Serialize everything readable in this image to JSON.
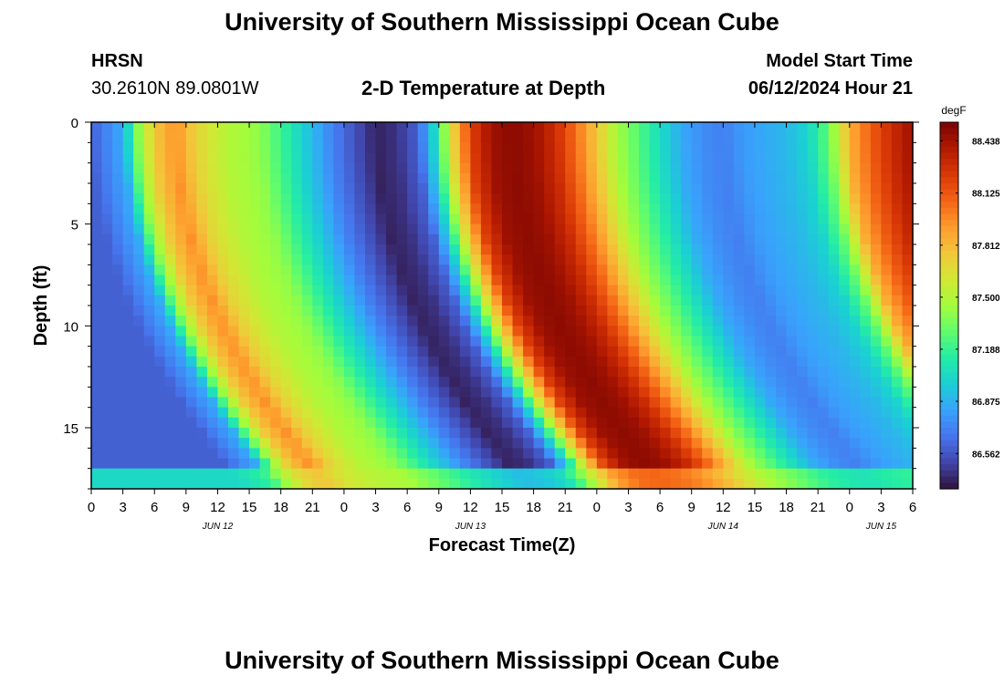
{
  "page": {
    "title": "University of Southern Mississippi Ocean Cube",
    "station": "HRSN",
    "coords": "30.2610N  89.0801W",
    "subtitle": "2-D Temperature at Depth",
    "model_label": "Model Start Time",
    "model_time": "06/12/2024 Hour 21",
    "footer_title": "University of Southern Mississippi Ocean Cube"
  },
  "chart_data": {
    "type": "heatmap",
    "title": "2-D Temperature at Depth",
    "xlabel": "Forecast Time(Z)",
    "ylabel": "Depth (ft)",
    "x_range_hours": [
      0,
      78
    ],
    "y_range_ft": [
      0,
      18
    ],
    "x_tick_step_hours": 3,
    "x_tick_labels": [
      "0",
      "3",
      "6",
      "9",
      "12",
      "15",
      "18",
      "21",
      "0",
      "3",
      "6",
      "9",
      "12",
      "15",
      "18",
      "21",
      "0",
      "3",
      "6",
      "9",
      "12",
      "15",
      "18",
      "21",
      "0",
      "3",
      "6"
    ],
    "date_labels": [
      {
        "hour": 12,
        "label": "JUN 12"
      },
      {
        "hour": 36,
        "label": "JUN 13"
      },
      {
        "hour": 60,
        "label": "JUN 14"
      },
      {
        "hour": 75,
        "label": "JUN 15"
      }
    ],
    "y_ticks": [
      0,
      5,
      10,
      15
    ],
    "colorbar": {
      "unit": "degF",
      "min": 86.35,
      "max": 88.55,
      "labels": [
        "88.438",
        "88.125",
        "87.812",
        "87.500",
        "87.188",
        "86.875",
        "86.562"
      ],
      "label_values": [
        88.438,
        88.125,
        87.812,
        87.5,
        87.188,
        86.875,
        86.562
      ],
      "colors": [
        "#30123b",
        "#4145ab",
        "#4675ed",
        "#39a2fc",
        "#1bcfd4",
        "#24eca6",
        "#61fc6c",
        "#a4fc3b",
        "#d1e834",
        "#f3c63a",
        "#fe9b2d",
        "#f36315",
        "#d93806",
        "#b11901",
        "#7a0403"
      ]
    },
    "description": "Temperature field (degF) vs forecast time and depth",
    "time_hours": [
      0,
      3,
      4.5,
      6,
      8,
      10,
      13,
      16,
      18,
      21,
      23,
      25,
      27,
      29,
      31,
      32.5,
      34,
      36,
      38,
      40,
      42,
      44,
      46,
      48,
      50,
      52,
      54,
      56,
      58,
      60,
      62,
      64,
      66,
      68,
      70,
      72,
      74,
      76,
      78
    ],
    "surface_degF": [
      86.6,
      86.85,
      87.4,
      87.75,
      87.95,
      87.7,
      87.5,
      87.4,
      87.2,
      86.9,
      86.7,
      86.55,
      86.4,
      86.45,
      86.6,
      87.0,
      87.6,
      88.2,
      88.45,
      88.5,
      88.45,
      88.3,
      88.05,
      87.75,
      87.45,
      87.25,
      87.05,
      86.85,
      86.75,
      86.7,
      86.8,
      86.85,
      86.9,
      87.0,
      87.3,
      87.85,
      88.1,
      88.3,
      88.45
    ],
    "depth_lag_hours_per_ft": 0.45,
    "bottom_layer_depth_ft": 17.2
  }
}
